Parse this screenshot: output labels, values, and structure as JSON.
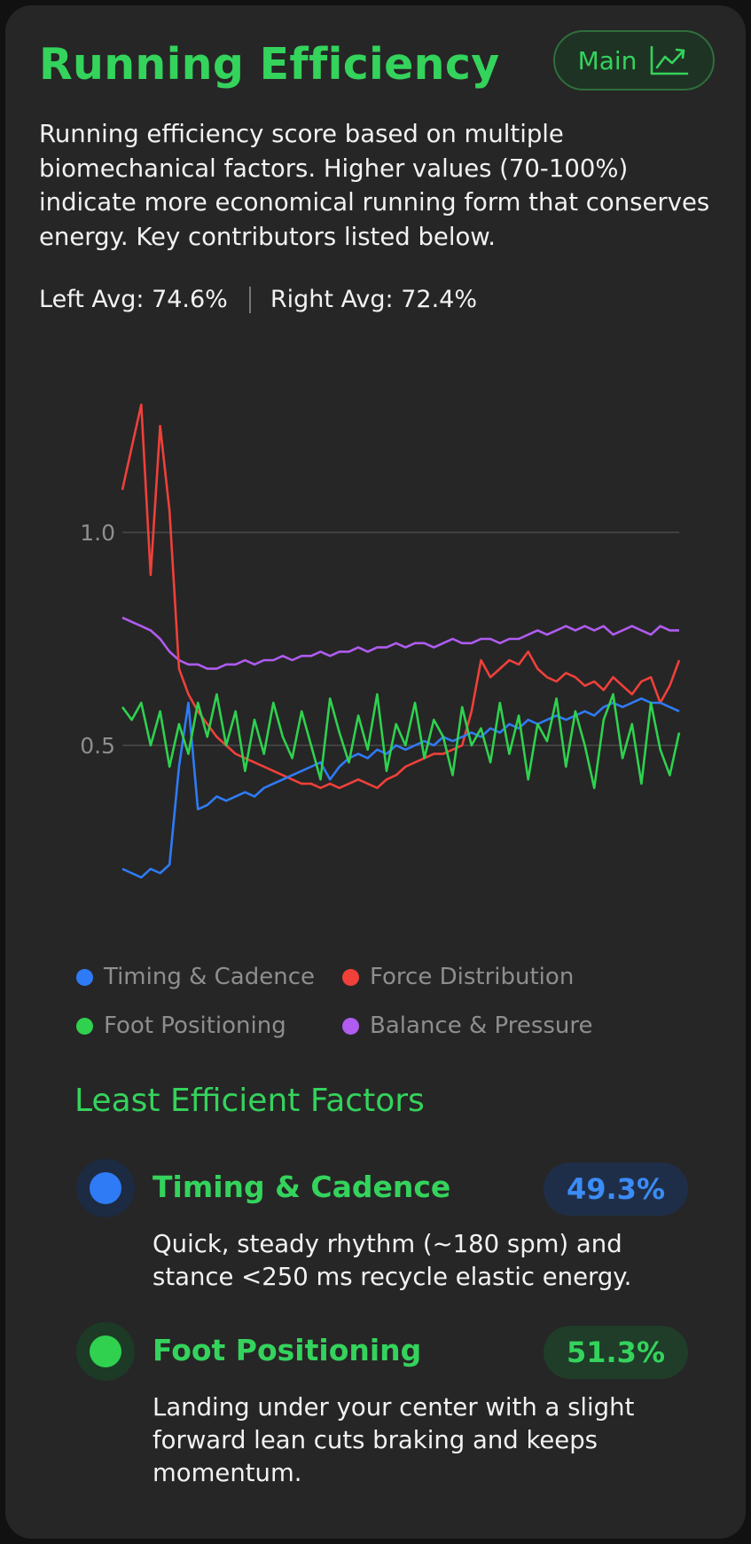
{
  "header": {
    "title": "Running Efficiency",
    "main_button_label": "Main",
    "main_button_icon": "trend-chart-icon"
  },
  "description": "Running efficiency score based on multiple biomechanical factors. Higher values (70-100%) indicate more economical running form that conserves energy. Key contributors listed below.",
  "averages": {
    "left": "Left Avg: 74.6%",
    "right": "Right Avg: 72.4%"
  },
  "chart_data": {
    "type": "line",
    "y_ticks": [
      {
        "value": 1.0,
        "label": "1.0"
      },
      {
        "value": 0.5,
        "label": "0.5"
      }
    ],
    "ylim": [
      0.15,
      1.3
    ],
    "grid": true,
    "legend_position": "bottom",
    "series": [
      {
        "name": "Timing & Cadence",
        "color": "#2f7bf5",
        "values": [
          0.21,
          0.2,
          0.19,
          0.21,
          0.2,
          0.22,
          0.45,
          0.6,
          0.35,
          0.36,
          0.38,
          0.37,
          0.38,
          0.39,
          0.38,
          0.4,
          0.41,
          0.42,
          0.43,
          0.44,
          0.45,
          0.46,
          0.42,
          0.45,
          0.47,
          0.48,
          0.47,
          0.49,
          0.48,
          0.5,
          0.49,
          0.5,
          0.51,
          0.5,
          0.52,
          0.51,
          0.52,
          0.53,
          0.52,
          0.54,
          0.53,
          0.55,
          0.54,
          0.56,
          0.55,
          0.56,
          0.57,
          0.56,
          0.57,
          0.58,
          0.57,
          0.59,
          0.6,
          0.59,
          0.6,
          0.61,
          0.6,
          0.6,
          0.59,
          0.58
        ]
      },
      {
        "name": "Force Distribution",
        "color": "#f0403a",
        "values": [
          1.1,
          1.2,
          1.3,
          0.9,
          1.25,
          1.05,
          0.68,
          0.62,
          0.58,
          0.55,
          0.52,
          0.5,
          0.48,
          0.47,
          0.46,
          0.45,
          0.44,
          0.43,
          0.42,
          0.41,
          0.41,
          0.4,
          0.41,
          0.4,
          0.41,
          0.42,
          0.41,
          0.4,
          0.42,
          0.43,
          0.45,
          0.46,
          0.47,
          0.48,
          0.48,
          0.49,
          0.5,
          0.58,
          0.7,
          0.66,
          0.68,
          0.7,
          0.69,
          0.72,
          0.68,
          0.66,
          0.65,
          0.67,
          0.66,
          0.64,
          0.65,
          0.63,
          0.66,
          0.64,
          0.62,
          0.65,
          0.66,
          0.6,
          0.64,
          0.7
        ]
      },
      {
        "name": "Foot Positioning",
        "color": "#2fd14f",
        "values": [
          0.59,
          0.56,
          0.6,
          0.5,
          0.58,
          0.45,
          0.55,
          0.48,
          0.6,
          0.52,
          0.62,
          0.5,
          0.58,
          0.44,
          0.56,
          0.48,
          0.6,
          0.52,
          0.47,
          0.58,
          0.5,
          0.42,
          0.61,
          0.53,
          0.46,
          0.57,
          0.49,
          0.62,
          0.44,
          0.55,
          0.5,
          0.6,
          0.47,
          0.56,
          0.52,
          0.43,
          0.59,
          0.5,
          0.54,
          0.46,
          0.6,
          0.48,
          0.57,
          0.42,
          0.55,
          0.51,
          0.61,
          0.45,
          0.58,
          0.5,
          0.4,
          0.56,
          0.62,
          0.47,
          0.55,
          0.41,
          0.6,
          0.49,
          0.43,
          0.53
        ]
      },
      {
        "name": "Balance & Pressure",
        "color": "#b05cf0",
        "values": [
          0.8,
          0.79,
          0.78,
          0.77,
          0.75,
          0.72,
          0.7,
          0.69,
          0.69,
          0.68,
          0.68,
          0.69,
          0.69,
          0.7,
          0.69,
          0.7,
          0.7,
          0.71,
          0.7,
          0.71,
          0.71,
          0.72,
          0.71,
          0.72,
          0.72,
          0.73,
          0.72,
          0.73,
          0.73,
          0.74,
          0.73,
          0.74,
          0.74,
          0.73,
          0.74,
          0.75,
          0.74,
          0.74,
          0.75,
          0.75,
          0.74,
          0.75,
          0.75,
          0.76,
          0.77,
          0.76,
          0.77,
          0.78,
          0.77,
          0.78,
          0.77,
          0.78,
          0.76,
          0.77,
          0.78,
          0.77,
          0.76,
          0.78,
          0.77,
          0.77
        ]
      }
    ]
  },
  "legend": [
    {
      "label": "Timing & Cadence",
      "color": "#2f7bf5"
    },
    {
      "label": "Force Distribution",
      "color": "#f0403a"
    },
    {
      "label": "Foot Positioning",
      "color": "#2fd14f"
    },
    {
      "label": "Balance & Pressure",
      "color": "#b05cf0"
    }
  ],
  "least_efficient": {
    "title": "Least Efficient Factors",
    "factors": [
      {
        "name": "Timing & Cadence",
        "value": "49.3%",
        "color": "#2f7bf5",
        "text": "Quick, steady rhythm (~180 spm) and stance <250 ms recycle elastic energy."
      },
      {
        "name": "Foot Positioning",
        "value": "51.3%",
        "color": "#2fd14f",
        "text": "Landing under your center with a slight forward lean cuts braking and keeps momentum."
      }
    ]
  }
}
